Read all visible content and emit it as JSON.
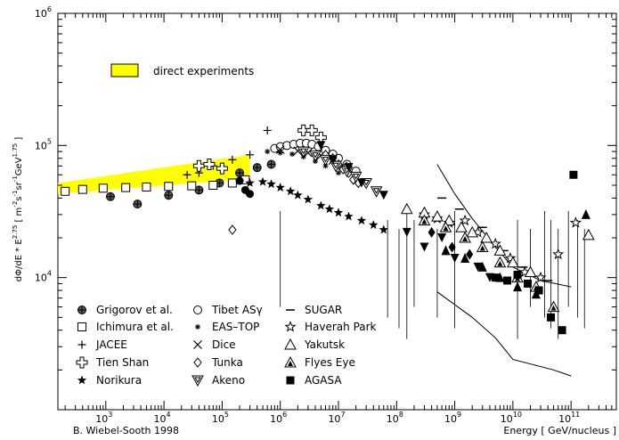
{
  "chart_data": {
    "type": "scatter",
    "ylabel": "dΦ/dE * E^2.75 [ m^-2 s^-1 sr^-1 GeV^1.75 ]",
    "ylabel_parts": {
      "main": "dΦ/dE * E",
      "exp": "2.75",
      "units_open": " [ m",
      "m_exp": "-2",
      "s": "s",
      "s_exp": "-1",
      "sr": "sr",
      "sr_exp": "-1",
      "gev": "GeV",
      "gev_exp": "1.75",
      "close": " ]"
    },
    "xlabel": "Energy [ GeV/nucleus ]",
    "credit": "B. Wiebel-Sooth 1998",
    "xscale": "log",
    "yscale": "log",
    "xlim": [
      150,
      600000000000
    ],
    "ylim": [
      1000,
      1000000
    ],
    "x_ticks": [
      {
        "value": 1000,
        "base": "10",
        "exp": "3"
      },
      {
        "value": 10000,
        "base": "10",
        "exp": "4"
      },
      {
        "value": 100000,
        "base": "10",
        "exp": "5"
      },
      {
        "value": 1000000,
        "base": "10",
        "exp": "6"
      },
      {
        "value": 10000000,
        "base": "10",
        "exp": "7"
      },
      {
        "value": 100000000,
        "base": "10",
        "exp": "8"
      },
      {
        "value": 1000000000,
        "base": "10",
        "exp": "9"
      },
      {
        "value": 10000000000,
        "base": "10",
        "exp": "10"
      },
      {
        "value": 100000000000,
        "base": "10",
        "exp": "11"
      }
    ],
    "y_ticks": [
      {
        "value": 10000,
        "base": "10",
        "exp": "4"
      },
      {
        "value": 100000,
        "base": "10",
        "exp": "5"
      },
      {
        "value": 1000000,
        "base": "10",
        "exp": "6"
      }
    ],
    "direct_band": {
      "label": "direct experiments",
      "color": "#ffff00",
      "x": [
        150,
        300000
      ],
      "y_low": [
        43000,
        56000
      ],
      "y_high": [
        52000,
        85000
      ]
    },
    "series": [
      {
        "name": "Grigorov et al.",
        "marker": "circle-cross",
        "points": [
          [
            1200,
            41000
          ],
          [
            3500,
            36000
          ],
          [
            12000,
            42000
          ],
          [
            40000,
            46000
          ],
          [
            90000,
            52000
          ],
          [
            200000,
            62000
          ],
          [
            400000,
            68000
          ],
          [
            700000,
            72000
          ]
        ]
      },
      {
        "name": "Ichimura et al.",
        "marker": "square-open",
        "points": [
          [
            200,
            45000
          ],
          [
            400,
            46500
          ],
          [
            900,
            47500
          ],
          [
            2200,
            48000
          ],
          [
            5000,
            48500
          ],
          [
            12000,
            49000
          ],
          [
            30000,
            49500
          ],
          [
            70000,
            50000
          ],
          [
            150000,
            52000
          ],
          [
            250000,
            55000
          ]
        ]
      },
      {
        "name": "JACEE",
        "marker": "plus",
        "points": [
          [
            25000,
            60000
          ],
          [
            40000,
            62000
          ],
          [
            70000,
            70000
          ],
          [
            150000,
            78000
          ],
          [
            300000,
            85000
          ],
          [
            600000,
            130000
          ],
          [
            900000,
            95000
          ]
        ]
      },
      {
        "name": "Tien Shan",
        "marker": "plus-open",
        "points": [
          [
            40000,
            70000
          ],
          [
            60000,
            72000
          ],
          [
            100000,
            67000
          ],
          [
            2500000,
            130000
          ],
          [
            3500000,
            130000
          ],
          [
            5000000,
            115000
          ]
        ]
      },
      {
        "name": "Norikura",
        "marker": "star-filled",
        "points": [
          [
            300000,
            52000
          ],
          [
            500000,
            53000
          ],
          [
            700000,
            51000
          ],
          [
            1000000,
            48000
          ],
          [
            1500000,
            45000
          ],
          [
            2000000,
            42000
          ],
          [
            3000000,
            39000
          ],
          [
            5000000,
            35000
          ],
          [
            7000000,
            33000
          ],
          [
            10000000,
            31000
          ],
          [
            15000000,
            29000
          ],
          [
            25000000,
            27000
          ],
          [
            40000000,
            25000
          ],
          [
            60000000,
            23000
          ]
        ]
      },
      {
        "name": "Tibet ASγ",
        "marker": "circle-open",
        "points": [
          [
            800000,
            95000
          ],
          [
            1000000,
            98000
          ],
          [
            1300000,
            100000
          ],
          [
            1700000,
            102000
          ],
          [
            2200000,
            104000
          ],
          [
            2800000,
            104000
          ],
          [
            3500000,
            102000
          ],
          [
            4500000,
            98000
          ],
          [
            6000000,
            92000
          ],
          [
            8000000,
            86000
          ],
          [
            10000000,
            80000
          ],
          [
            14000000,
            72000
          ],
          [
            20000000,
            64000
          ]
        ]
      },
      {
        "name": "EAS–TOP",
        "marker": "asterisk",
        "points": [
          [
            600000,
            90000
          ],
          [
            1000000,
            88000
          ],
          [
            1600000,
            86000
          ],
          [
            2500000,
            82000
          ],
          [
            4000000,
            76000
          ],
          [
            6000000,
            70000
          ],
          [
            10000000,
            62000
          ]
        ]
      },
      {
        "name": "Dice",
        "marker": "cross",
        "points": [
          [
            1000000,
            93000
          ],
          [
            2000000,
            91000
          ],
          [
            3000000,
            88000
          ],
          [
            5000000,
            84000
          ],
          [
            8000000,
            77000
          ],
          [
            12000000,
            70000
          ]
        ]
      },
      {
        "name": "Tunka",
        "marker": "diamond-open",
        "points": [
          [
            150000,
            23000
          ],
          [
            6000000,
            85000
          ],
          [
            8000000,
            80000
          ],
          [
            10000000,
            72000
          ],
          [
            12000000,
            66000
          ],
          [
            15000000,
            62000
          ],
          [
            18000000,
            55000
          ],
          [
            22000000,
            52000
          ]
        ]
      },
      {
        "name": "Akeno",
        "marker": "triangle-down-open",
        "points": [
          [
            2500000,
            90000
          ],
          [
            4000000,
            84000
          ],
          [
            6000000,
            78000
          ],
          [
            9000000,
            70000
          ],
          [
            14000000,
            64000
          ],
          [
            20000000,
            58000
          ],
          [
            30000000,
            52000
          ],
          [
            45000000,
            45000
          ]
        ]
      },
      {
        "name": "SUGAR",
        "marker": "dash",
        "points": [
          [
            600000000,
            40000
          ],
          [
            1200000000,
            33000
          ],
          [
            3000000000,
            24000
          ],
          [
            7000000000,
            16000
          ],
          [
            15000000000,
            12000
          ],
          [
            40000000000,
            9500
          ]
        ]
      },
      {
        "name": "Haverah Park",
        "marker": "star-open",
        "points": [
          [
            300000000,
            30000
          ],
          [
            500000000,
            28000
          ],
          [
            800000000,
            26000
          ],
          [
            1500000000,
            27000
          ],
          [
            2500000000,
            22000
          ],
          [
            5000000000,
            18000
          ],
          [
            9000000000,
            14000
          ],
          [
            16000000000,
            11000
          ],
          [
            30000000000,
            10000
          ],
          [
            60000000000,
            15000
          ],
          [
            120000000000,
            26000
          ]
        ]
      },
      {
        "name": "Yakutsk",
        "marker": "triangle-open",
        "points": [
          [
            150000000,
            33000
          ],
          [
            300000000,
            31000
          ],
          [
            500000000,
            29000
          ],
          [
            800000000,
            27000
          ],
          [
            1300000000,
            24000
          ],
          [
            2000000000,
            22000
          ],
          [
            3500000000,
            20000
          ],
          [
            6000000000,
            16000
          ],
          [
            10000000000,
            13000
          ],
          [
            20000000000,
            11000
          ],
          [
            200000000000,
            21000
          ]
        ]
      },
      {
        "name": "Flyes Eye",
        "marker": "triangle-filled-open",
        "points": [
          [
            300000000,
            27000
          ],
          [
            700000000,
            24000
          ],
          [
            1500000000,
            20000
          ],
          [
            3000000000,
            17000
          ],
          [
            6000000000,
            13000
          ],
          [
            12000000000,
            10000
          ],
          [
            25000000000,
            8500
          ],
          [
            50000000000,
            6000
          ]
        ]
      },
      {
        "name": "AGASA",
        "marker": "square-filled",
        "points": [
          [
            5000000000,
            10000
          ],
          [
            8000000000,
            9500
          ],
          [
            12000000000,
            10500
          ],
          [
            18000000000,
            9000
          ],
          [
            28000000000,
            8000
          ],
          [
            45000000000,
            5000
          ],
          [
            70000000000,
            4000
          ],
          [
            110000000000,
            60000
          ]
        ]
      },
      {
        "name": "",
        "marker": "circle-filled",
        "points": [
          [
            200000,
            54000
          ],
          [
            250000,
            46000
          ],
          [
            300000,
            43000
          ]
        ]
      },
      {
        "name": "",
        "marker": "triangle-down-filled",
        "points": [
          [
            5000000,
            100000
          ],
          [
            8000000,
            78000
          ],
          [
            15000000,
            68000
          ],
          [
            25000000,
            52000
          ],
          [
            60000000,
            42000
          ],
          [
            150000000,
            22000
          ],
          [
            300000000,
            17000
          ],
          [
            600000000,
            20000
          ],
          [
            1000000000,
            14000
          ],
          [
            2500000000,
            12000
          ],
          [
            4000000000,
            10000
          ]
        ]
      },
      {
        "name": "",
        "marker": "triangle-filled",
        "points": [
          [
            700000000,
            16000
          ],
          [
            1500000000,
            14000
          ],
          [
            3000000000,
            12000
          ],
          [
            6000000000,
            10000
          ],
          [
            12000000000,
            8500
          ],
          [
            25000000000,
            7500
          ],
          [
            180000000000,
            30000
          ]
        ]
      },
      {
        "name": "",
        "marker": "diamond-filled",
        "points": [
          [
            400000000,
            22000
          ],
          [
            900000000,
            17000
          ],
          [
            1800000000,
            15000
          ]
        ]
      }
    ],
    "lines": [
      {
        "points": [
          [
            500000000,
            72000
          ],
          [
            1000000000,
            43000
          ],
          [
            2000000000,
            28000
          ],
          [
            5000000000,
            17000
          ],
          [
            10000000000,
            12000
          ],
          [
            30000000000,
            9500
          ],
          [
            100000000000,
            8500
          ]
        ]
      },
      {
        "points": [
          [
            500000000,
            7800
          ],
          [
            2000000000,
            5000
          ],
          [
            5000000000,
            3500
          ],
          [
            10000000000,
            2400
          ],
          [
            50000000000,
            2000
          ],
          [
            100000000000,
            1800
          ]
        ]
      }
    ],
    "errorbars_x": [
      1000000,
      70000000,
      110000000,
      150000000,
      200000000,
      500000000,
      1000000000,
      12000000000,
      20000000000,
      35000000000,
      45000000000,
      60000000000,
      90000000000,
      130000000000,
      170000000000
    ],
    "legend_order": [
      "Grigorov et al.",
      "Ichimura et al.",
      "JACEE",
      "Tien Shan",
      "Norikura",
      "Tibet ASγ",
      "EAS–TOP",
      "Dice",
      "Tunka",
      "Akeno",
      "SUGAR",
      "Haverah Park",
      "Yakutsk",
      "Flyes Eye",
      "AGASA"
    ]
  }
}
